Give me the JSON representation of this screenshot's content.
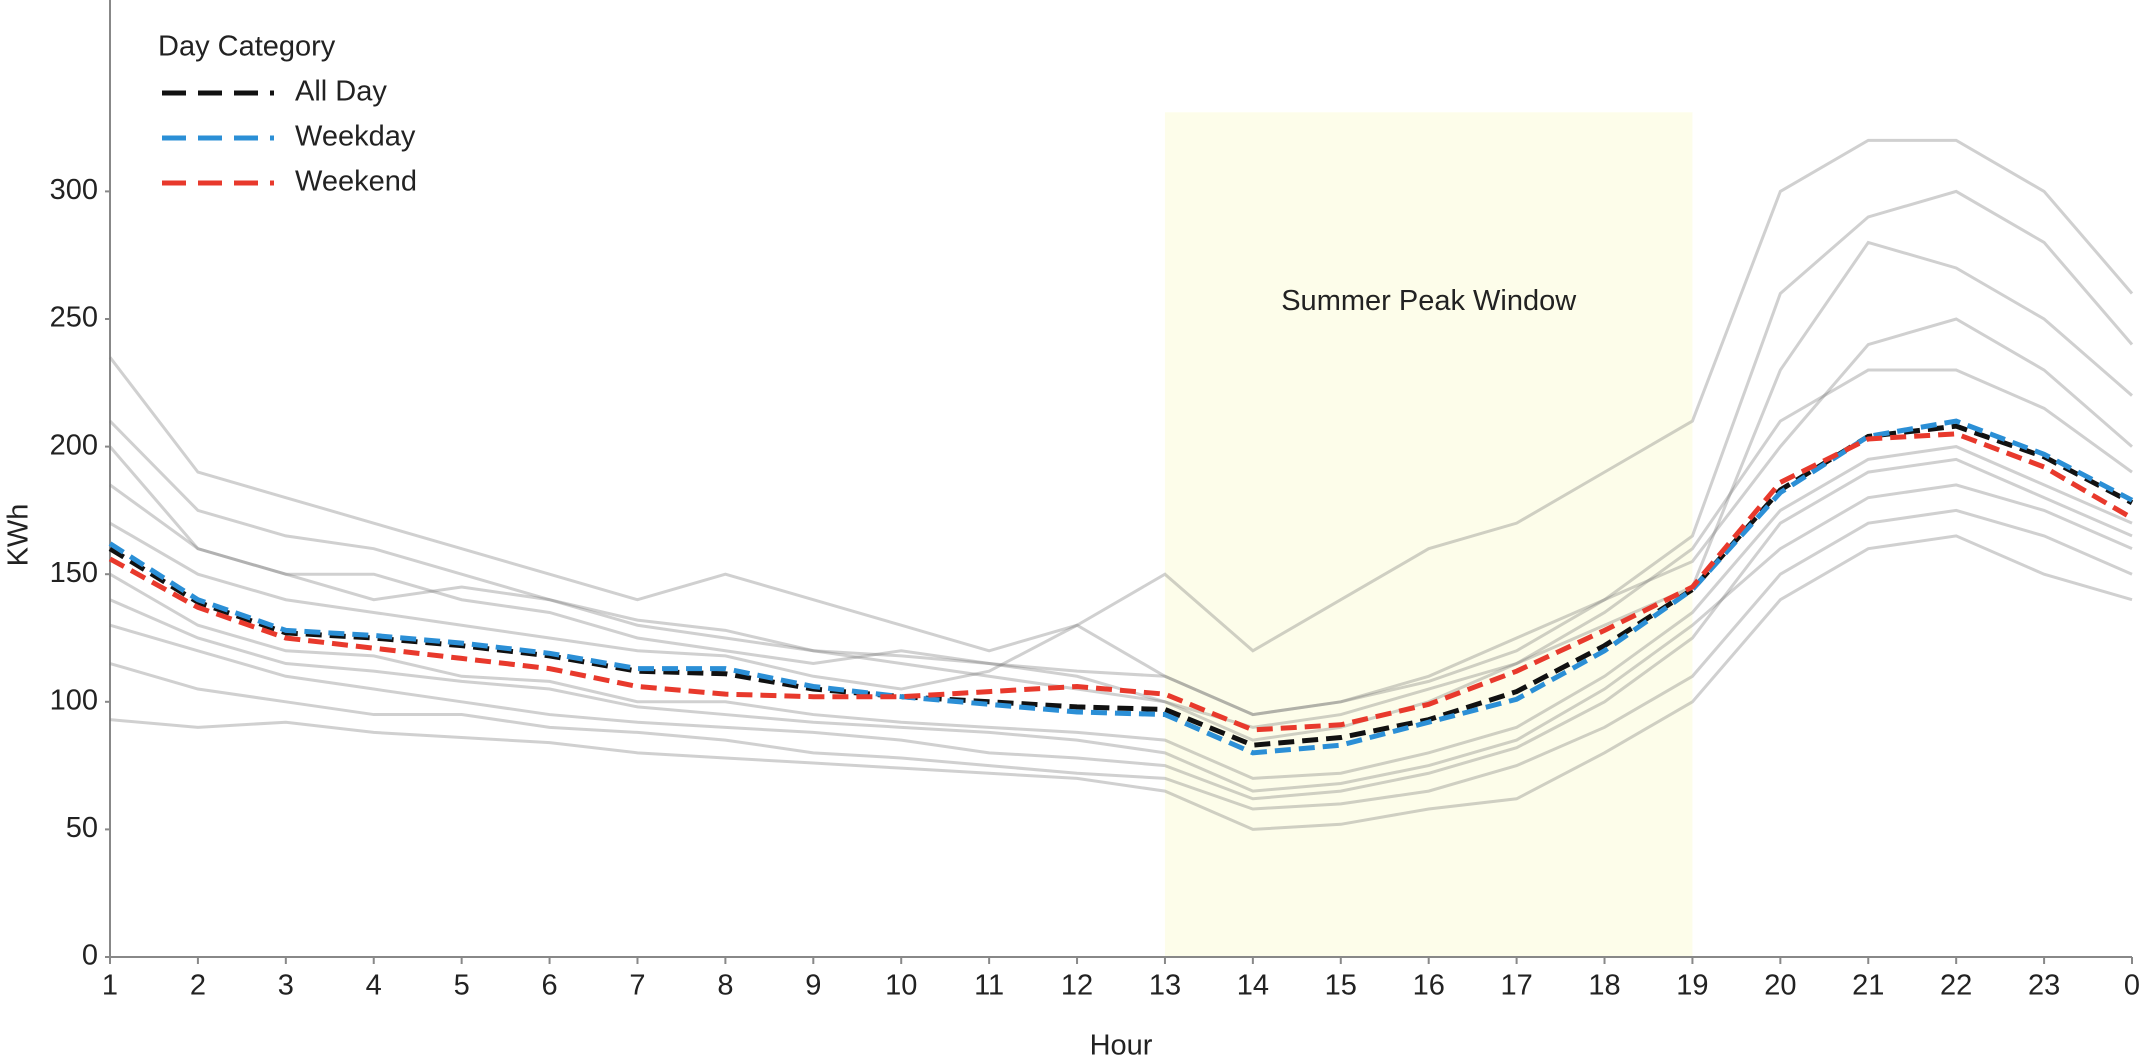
{
  "chart_data": {
    "type": "line",
    "xlabel": "Hour",
    "ylabel": "KWh",
    "categories": [
      1,
      2,
      3,
      4,
      5,
      6,
      7,
      8,
      9,
      10,
      11,
      12,
      13,
      14,
      15,
      16,
      17,
      18,
      19,
      20,
      21,
      22,
      23,
      0
    ],
    "ylim": [
      0,
      375
    ],
    "yticks": [
      0,
      50,
      100,
      150,
      200,
      250,
      300
    ],
    "legend_title": "Day Category",
    "legend": "upper left",
    "shaded_region": {
      "label": "Summer Peak Window",
      "from": 13,
      "to": 19,
      "ylim": [
        0,
        331
      ],
      "color": "#fdfdea"
    },
    "background_lines": {
      "color": "#777777",
      "opacity": 0.35,
      "values": [
        [
          235,
          190,
          180,
          170,
          160,
          150,
          140,
          150,
          140,
          130,
          120,
          130,
          150,
          120,
          140,
          160,
          170,
          190,
          210,
          300,
          320,
          320,
          300,
          260
        ],
        [
          115,
          105,
          100,
          95,
          95,
          90,
          88,
          85,
          80,
          78,
          75,
          72,
          70,
          58,
          60,
          65,
          75,
          90,
          110,
          150,
          170,
          175,
          165,
          150
        ],
        [
          200,
          160,
          150,
          140,
          145,
          140,
          130,
          125,
          120,
          115,
          110,
          105,
          100,
          90,
          95,
          105,
          115,
          130,
          145,
          230,
          280,
          270,
          250,
          220
        ],
        [
          93,
          90,
          92,
          88,
          86,
          84,
          80,
          78,
          76,
          74,
          72,
          70,
          65,
          50,
          52,
          58,
          62,
          80,
          100,
          140,
          160,
          165,
          150,
          140
        ],
        [
          170,
          150,
          140,
          135,
          130,
          125,
          120,
          118,
          110,
          105,
          112,
          130,
          110,
          95,
          100,
          110,
          125,
          140,
          155,
          200,
          240,
          250,
          230,
          200
        ],
        [
          130,
          120,
          110,
          105,
          100,
          95,
          92,
          90,
          88,
          85,
          80,
          78,
          75,
          62,
          65,
          72,
          82,
          100,
          125,
          170,
          190,
          195,
          180,
          165
        ],
        [
          185,
          160,
          150,
          150,
          140,
          135,
          125,
          120,
          115,
          120,
          115,
          110,
          100,
          85,
          90,
          100,
          115,
          135,
          160,
          210,
          230,
          230,
          215,
          190
        ],
        [
          150,
          130,
          120,
          118,
          110,
          108,
          100,
          100,
          95,
          92,
          90,
          88,
          85,
          70,
          72,
          80,
          90,
          110,
          135,
          175,
          195,
          200,
          185,
          170
        ],
        [
          140,
          125,
          115,
          112,
          108,
          105,
          98,
          95,
          92,
          90,
          88,
          85,
          80,
          65,
          68,
          75,
          85,
          105,
          130,
          160,
          180,
          185,
          175,
          160
        ],
        [
          210,
          175,
          165,
          160,
          150,
          140,
          132,
          128,
          120,
          118,
          115,
          112,
          110,
          95,
          100,
          108,
          120,
          140,
          165,
          260,
          290,
          300,
          280,
          240
        ]
      ]
    },
    "series": [
      {
        "name": "All Day",
        "color": "#111111",
        "values": [
          160,
          139,
          127,
          125,
          122,
          118,
          112,
          111,
          105,
          102,
          100,
          98,
          97,
          83,
          86,
          93,
          104,
          122,
          144,
          183,
          204,
          208,
          196,
          178
        ]
      },
      {
        "name": "Weekday",
        "color": "#2b8fd6",
        "values": [
          162,
          140,
          128,
          126,
          123,
          119,
          113,
          113,
          106,
          102,
          99,
          96,
          95,
          80,
          83,
          92,
          101,
          120,
          144,
          182,
          204,
          210,
          197,
          179
        ]
      },
      {
        "name": "Weekend",
        "color": "#e8392c",
        "values": [
          156,
          137,
          125,
          121,
          117,
          113,
          106,
          103,
          102,
          102,
          104,
          106,
          103,
          89,
          91,
          99,
          112,
          128,
          145,
          186,
          203,
          205,
          192,
          172
        ]
      }
    ]
  }
}
